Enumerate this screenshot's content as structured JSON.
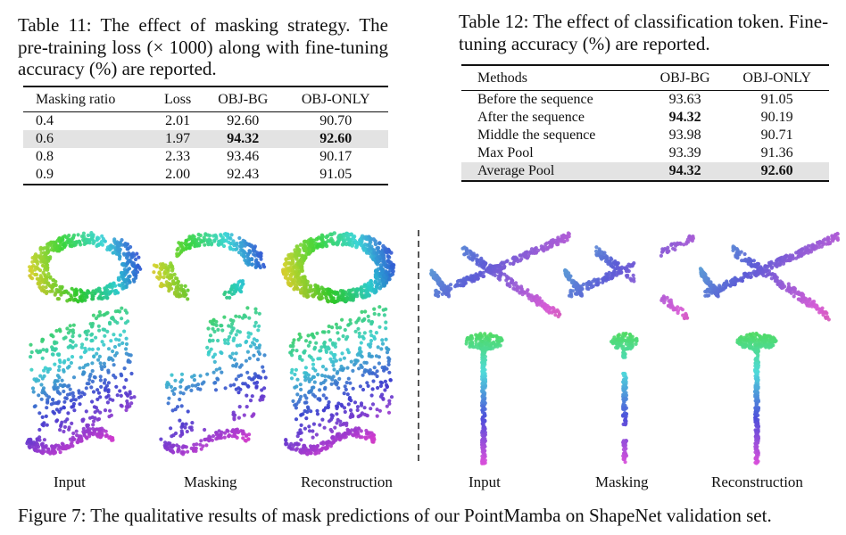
{
  "table11": {
    "caption": "Table 11: The effect of masking strategy. The pre-training loss (× 1000) along with fine-tuning accuracy (%) are reported.",
    "headers": [
      "Masking ratio",
      "Loss",
      "OBJ-BG",
      "OBJ-ONLY"
    ],
    "rows": [
      [
        "0.4",
        "2.01",
        "92.60",
        "90.70"
      ],
      [
        "0.6",
        "1.97",
        "94.32",
        "92.60"
      ],
      [
        "0.8",
        "2.33",
        "93.46",
        "90.17"
      ],
      [
        "0.9",
        "2.00",
        "92.43",
        "91.05"
      ]
    ]
  },
  "table12": {
    "caption": "Table 12: The effect of classification token. Fine-tuning accuracy (%) are reported.",
    "headers": [
      "Methods",
      "OBJ-BG",
      "OBJ-ONLY"
    ],
    "rows": [
      [
        "Before the sequence",
        "93.63",
        "91.05"
      ],
      [
        "After the sequence",
        "94.32",
        "90.19"
      ],
      [
        "Middle the sequence",
        "93.98",
        "90.71"
      ],
      [
        "Max Pool",
        "93.39",
        "91.36"
      ],
      [
        "Average Pool",
        "94.32",
        "92.60"
      ]
    ]
  },
  "figure": {
    "labels_left": [
      "Input",
      "Masking",
      "Reconstruction"
    ],
    "labels_right": [
      "Input",
      "Masking",
      "Reconstruction"
    ],
    "caption": "Figure 7: The qualitative results of mask predictions of our PointMamba on ShapeNet validation set."
  }
}
